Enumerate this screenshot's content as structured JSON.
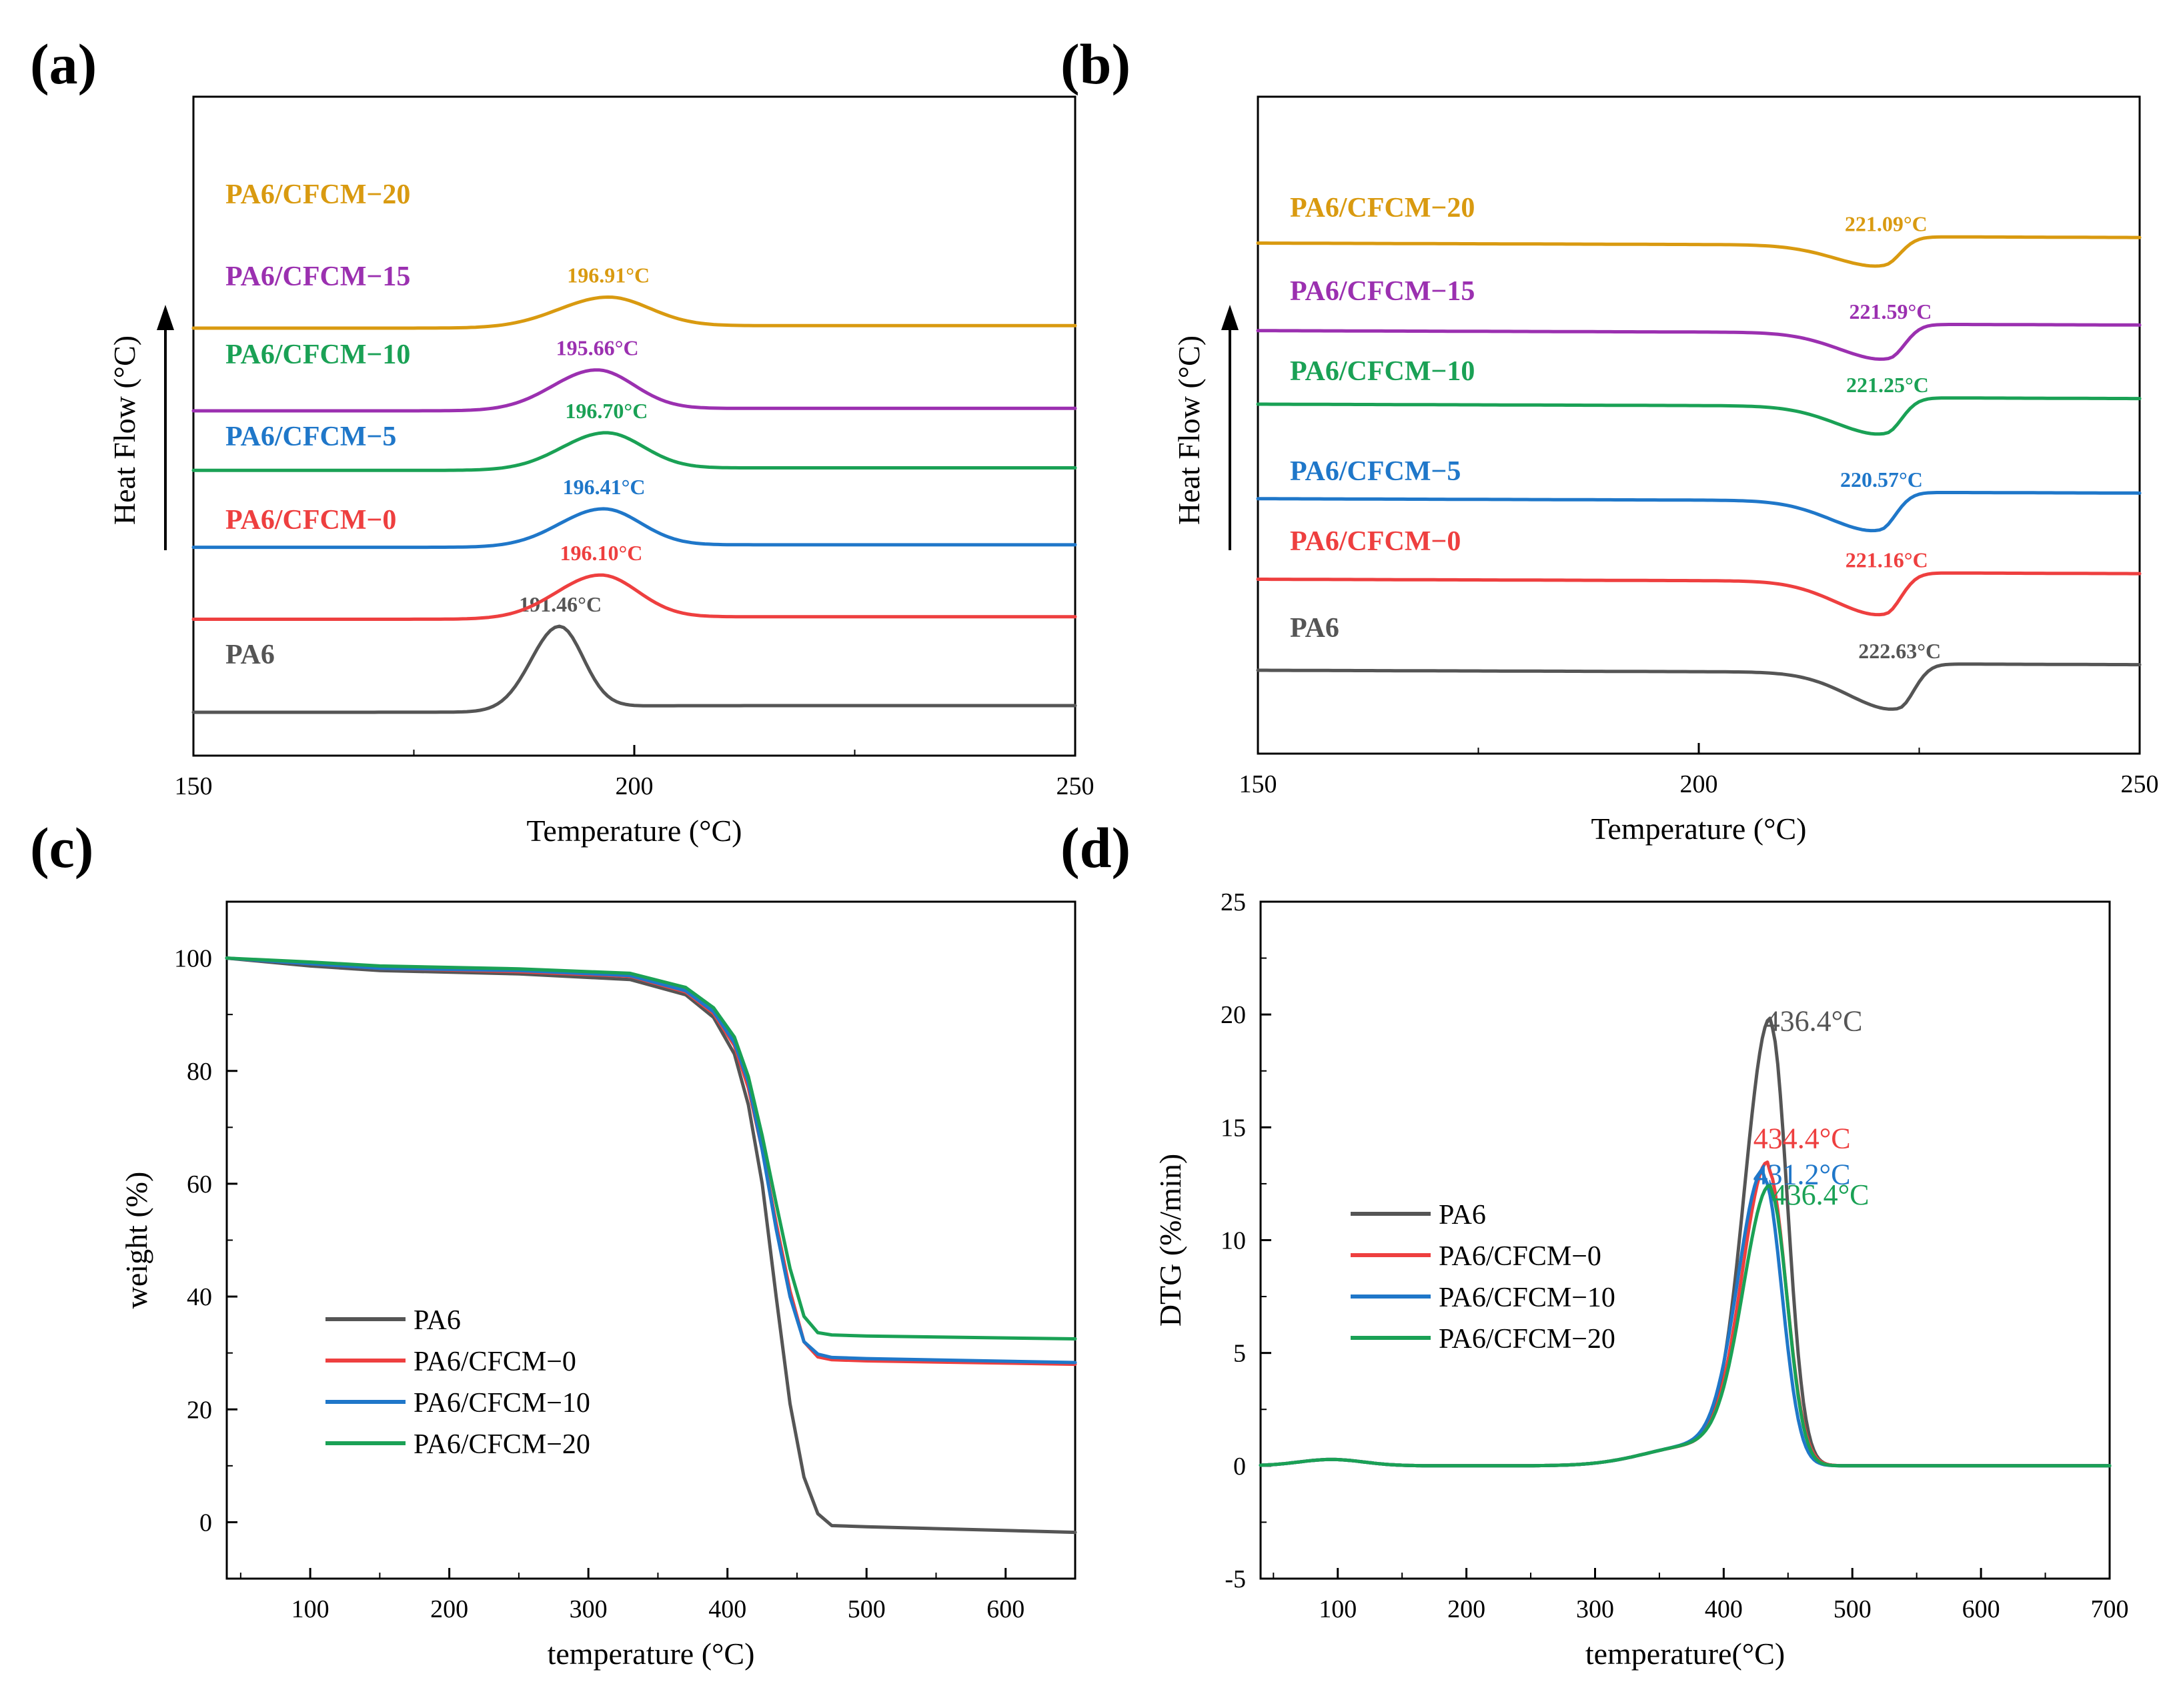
{
  "chart_data": [
    {
      "id": "a",
      "panel_label": "(a)",
      "type": "line",
      "xlabel": "Temperature (°C)",
      "ylabel": "Heat Flow (°C)",
      "xlim": [
        150,
        250
      ],
      "xticks": [
        150,
        200,
        250
      ],
      "xtick_labels": [
        "150",
        "200",
        "250"
      ],
      "colors": [
        "#555555",
        "#ee3f3f",
        "#1f77c9",
        "#1aa155",
        "#9b30b0",
        "#d99a10"
      ],
      "series": [
        {
          "name": "PA6",
          "peak_label": "191.46°C",
          "peak": 191.46,
          "baseline": 0.0,
          "height": 1.0,
          "width": 3.2,
          "dir": 1
        },
        {
          "name": "PA6/CFCM−0",
          "peak_label": "196.10°C",
          "peak": 196.1,
          "baseline": 1.1,
          "height": 0.52,
          "width": 5.0,
          "dir": 1
        },
        {
          "name": "PA6/CFCM−5",
          "peak_label": "196.41°C",
          "peak": 196.41,
          "baseline": 1.97,
          "height": 0.45,
          "width": 5.0,
          "dir": 1
        },
        {
          "name": "PA6/CFCM−10",
          "peak_label": "196.70°C",
          "peak": 196.7,
          "baseline": 2.9,
          "height": 0.44,
          "width": 5.0,
          "dir": 1
        },
        {
          "name": "PA6/CFCM−15",
          "peak_label": "195.66°C",
          "peak": 195.66,
          "baseline": 3.62,
          "height": 0.48,
          "width": 5.0,
          "dir": 1
        },
        {
          "name": "PA6/CFCM−20",
          "peak_label": "196.91°C",
          "peak": 196.91,
          "baseline": 4.62,
          "height": 0.36,
          "width": 5.6,
          "dir": 1
        }
      ]
    },
    {
      "id": "b",
      "panel_label": "(b)",
      "type": "line",
      "xlabel": "Temperature (°C)",
      "ylabel": "Heat Flow (°C)",
      "xlim": [
        150,
        250
      ],
      "xticks": [
        150,
        200,
        250
      ],
      "xtick_labels": [
        "150",
        "200",
        "250"
      ],
      "colors": [
        "#555555",
        "#ee3f3f",
        "#1f77c9",
        "#1aa155",
        "#9b30b0",
        "#d99a10"
      ],
      "series": [
        {
          "name": "PA6",
          "peak_label": "222.63°C",
          "peak": 222.63,
          "baseline": 0.0,
          "height": 0.55,
          "dir": -1
        },
        {
          "name": "PA6/CFCM−0",
          "peak_label": "221.16°C",
          "peak": 221.16,
          "baseline": 1.3,
          "height": 0.5,
          "dir": -1
        },
        {
          "name": "PA6/CFCM−5",
          "peak_label": "220.57°C",
          "peak": 220.57,
          "baseline": 2.45,
          "height": 0.45,
          "dir": -1
        },
        {
          "name": "PA6/CFCM−10",
          "peak_label": "221.25°C",
          "peak": 221.25,
          "baseline": 3.8,
          "height": 0.42,
          "dir": -1
        },
        {
          "name": "PA6/CFCM−15",
          "peak_label": "221.59°C",
          "peak": 221.59,
          "baseline": 4.85,
          "height": 0.4,
          "dir": -1
        },
        {
          "name": "PA6/CFCM−20",
          "peak_label": "221.09°C",
          "peak": 221.09,
          "baseline": 6.1,
          "height": 0.32,
          "dir": -1
        }
      ]
    },
    {
      "id": "c",
      "panel_label": "(c)",
      "type": "line",
      "xlabel": "temperature (°C)",
      "ylabel": "weight (%)",
      "xlim": [
        40,
        650
      ],
      "ylim": [
        -10,
        110
      ],
      "xticks": [
        100,
        200,
        300,
        400,
        500,
        600
      ],
      "xtick_labels": [
        "100",
        "200",
        "300",
        "400",
        "500",
        "600"
      ],
      "yticks": [
        0,
        20,
        40,
        60,
        80,
        100
      ],
      "ytick_labels": [
        "0",
        "20",
        "40",
        "60",
        "80",
        "100"
      ],
      "legend_position": "lower-left",
      "series": [
        {
          "name": "PA6",
          "color": "#555555",
          "x": [
            40,
            100,
            150,
            250,
            330,
            370,
            390,
            405,
            415,
            425,
            435,
            445,
            455,
            465,
            475,
            500,
            650
          ],
          "y": [
            100,
            98.6,
            97.8,
            97.2,
            96.2,
            93.5,
            89.5,
            83,
            74,
            60,
            40,
            21,
            8,
            1.5,
            -0.6,
            -0.8,
            -1.8
          ]
        },
        {
          "name": "PA6/CFCM−0",
          "color": "#ee3f3f",
          "x": [
            40,
            100,
            150,
            250,
            330,
            370,
            390,
            405,
            415,
            425,
            435,
            445,
            455,
            465,
            475,
            500,
            650
          ],
          "y": [
            100,
            99,
            98.2,
            97.6,
            96.8,
            94,
            90.2,
            84.5,
            77,
            66,
            53,
            41,
            32,
            29.3,
            28.8,
            28.6,
            28
          ]
        },
        {
          "name": "PA6/CFCM−10",
          "color": "#1f77c9",
          "x": [
            40,
            100,
            150,
            250,
            330,
            370,
            390,
            405,
            415,
            425,
            435,
            445,
            455,
            465,
            475,
            500,
            650
          ],
          "y": [
            100,
            99,
            98.2,
            97.8,
            96.9,
            94.2,
            90.5,
            85,
            78,
            66,
            52,
            40,
            32,
            29.8,
            29.2,
            29,
            28.3
          ]
        },
        {
          "name": "PA6/CFCM−20",
          "color": "#1aa155",
          "x": [
            40,
            100,
            150,
            250,
            330,
            370,
            390,
            405,
            415,
            425,
            435,
            445,
            455,
            465,
            475,
            500,
            650
          ],
          "y": [
            100,
            99.3,
            98.6,
            98.1,
            97.3,
            94.8,
            91.2,
            86,
            79,
            68.5,
            56.5,
            45,
            36.5,
            33.6,
            33.2,
            33,
            32.5
          ]
        }
      ]
    },
    {
      "id": "d",
      "panel_label": "(d)",
      "type": "line",
      "xlabel": "temperature(°C)",
      "ylabel": "DTG (%/min)",
      "xlim": [
        40,
        700
      ],
      "ylim": [
        -5,
        25
      ],
      "xticks": [
        100,
        200,
        300,
        400,
        500,
        600,
        700
      ],
      "xtick_labels": [
        "100",
        "200",
        "300",
        "400",
        "500",
        "600",
        "700"
      ],
      "yticks": [
        -5,
        0,
        5,
        10,
        15,
        20,
        25
      ],
      "ytick_labels": [
        "-5",
        "0",
        "5",
        "10",
        "15",
        "20",
        "25"
      ],
      "legend_position": "center-left",
      "series": [
        {
          "name": "PA6",
          "color": "#555555",
          "peak": 436.4,
          "peak_label": "436.4°C",
          "height": 19.5,
          "width_left": 20,
          "width_right": 13
        },
        {
          "name": "PA6/CFCM−0",
          "color": "#ee3f3f",
          "peak": 434.4,
          "peak_label": "434.4°C",
          "height": 13.1,
          "width_left": 20,
          "width_right": 14
        },
        {
          "name": "PA6/CFCM−10",
          "color": "#1f77c9",
          "peak": 431.2,
          "peak_label": "431.2°C",
          "height": 12.7,
          "width_left": 20,
          "width_right": 14
        },
        {
          "name": "PA6/CFCM−20",
          "color": "#1aa155",
          "peak": 436.4,
          "peak_label": "436.4°C",
          "height": 12.1,
          "width_left": 21,
          "width_right": 13
        }
      ]
    }
  ]
}
